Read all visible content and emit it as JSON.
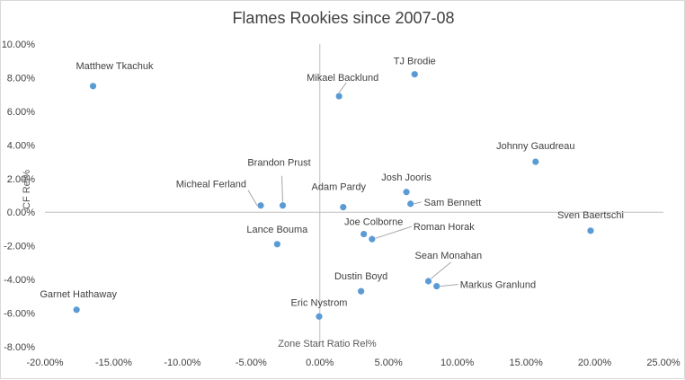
{
  "chart_data": {
    "type": "scatter",
    "title": "Flames Rookies since 2007-08",
    "xlabel": "Zone Start Ratio Rel%",
    "ylabel": "CF Rel%",
    "xlim": [
      -0.2,
      0.25
    ],
    "ylim": [
      -0.08,
      0.1
    ],
    "x_ticks": [
      "-20.00%",
      "-15.00%",
      "-10.00%",
      "-5.00%",
      "0.00%",
      "5.00%",
      "10.00%",
      "15.00%",
      "20.00%",
      "25.00%"
    ],
    "y_ticks": [
      "10.00%",
      "8.00%",
      "6.00%",
      "4.00%",
      "2.00%",
      "0.00%",
      "-2.00%",
      "-4.00%",
      "-6.00%",
      "-8.00%"
    ],
    "grid": false,
    "marker_color": "#5b9bd5",
    "points": [
      {
        "label": "Matthew Tkachuk",
        "x": -0.165,
        "y": 0.075
      },
      {
        "label": "Mikael Backlund",
        "x": 0.014,
        "y": 0.069
      },
      {
        "label": "TJ Brodie",
        "x": 0.069,
        "y": 0.082
      },
      {
        "label": "Johnny Gaudreau",
        "x": 0.157,
        "y": 0.03
      },
      {
        "label": "Brandon Prust",
        "x": -0.027,
        "y": 0.004
      },
      {
        "label": "Micheal Ferland",
        "x": -0.043,
        "y": 0.004
      },
      {
        "label": "Josh Jooris",
        "x": 0.063,
        "y": 0.012
      },
      {
        "label": "Adam Pardy",
        "x": 0.017,
        "y": 0.003
      },
      {
        "label": "Sam Bennett",
        "x": 0.066,
        "y": 0.005
      },
      {
        "label": "Sven Baertschi",
        "x": 0.197,
        "y": -0.011
      },
      {
        "label": "Lance Bouma",
        "x": -0.031,
        "y": -0.019
      },
      {
        "label": "Joe Colborne",
        "x": 0.032,
        "y": -0.013
      },
      {
        "label": "Roman Horak",
        "x": 0.038,
        "y": -0.016
      },
      {
        "label": "Sean Monahan",
        "x": 0.079,
        "y": -0.041
      },
      {
        "label": "Markus Granlund",
        "x": 0.085,
        "y": -0.044
      },
      {
        "label": "Dustin Boyd",
        "x": 0.03,
        "y": -0.047
      },
      {
        "label": "Garnet Hathaway",
        "x": -0.177,
        "y": -0.058
      },
      {
        "label": "Eric Nystrom",
        "x": -0.0005,
        "y": -0.062
      }
    ]
  }
}
